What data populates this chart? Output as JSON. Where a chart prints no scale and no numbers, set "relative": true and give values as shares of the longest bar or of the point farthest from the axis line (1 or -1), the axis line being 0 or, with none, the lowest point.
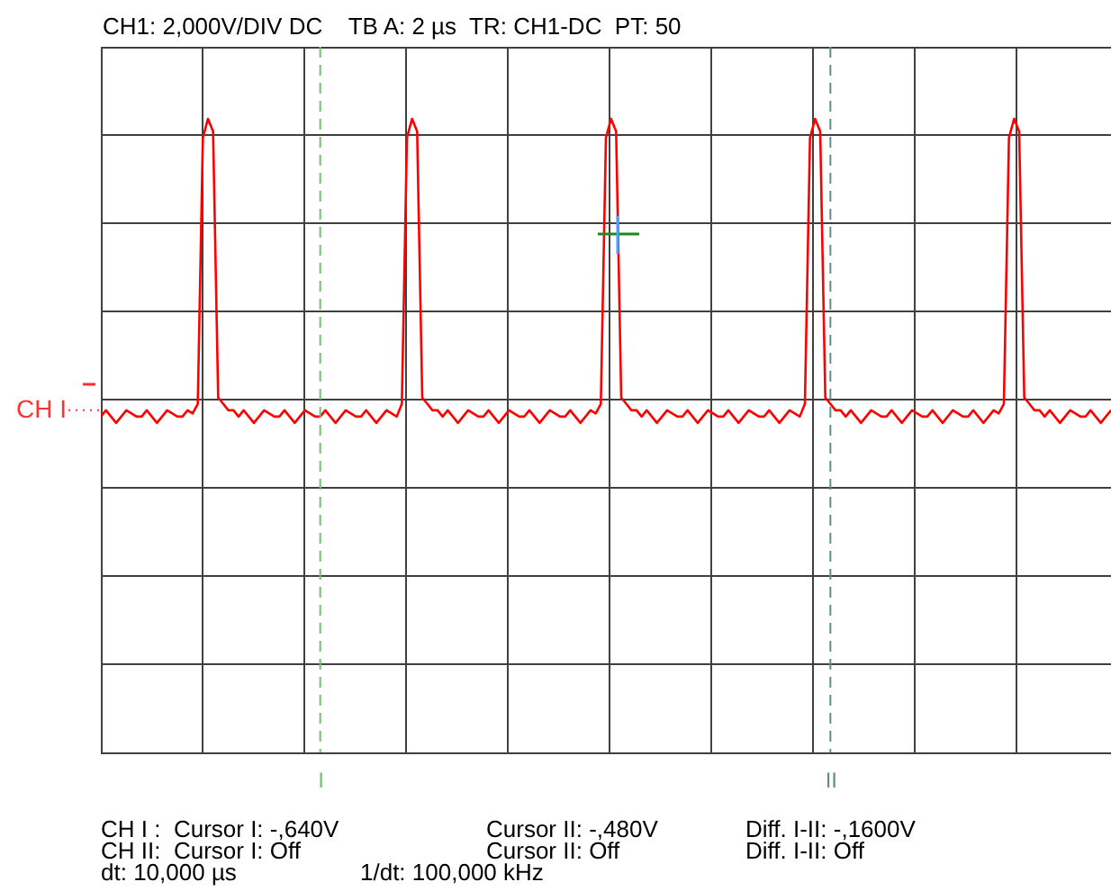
{
  "chart_data": {
    "type": "line",
    "title": "CH1: 2,000V/DIV DC    TB A: 2 µs  TR: CH1-DC  PT: 50",
    "relative": true,
    "grid": true,
    "line_style": "solid",
    "categories": [
      null,
      null,
      null,
      null,
      null,
      null,
      null,
      null,
      null,
      null,
      null,
      null,
      null,
      null,
      null,
      null,
      null,
      null,
      null,
      null,
      null,
      null,
      null,
      null,
      null,
      null,
      null,
      null,
      null,
      null,
      null,
      null,
      null,
      null,
      null,
      null,
      null,
      null,
      null,
      null,
      null,
      null,
      null,
      "I",
      null,
      null,
      null,
      null,
      null,
      null,
      null,
      null,
      null,
      null,
      null,
      null,
      null,
      null,
      null,
      null,
      null,
      null,
      null,
      null,
      null,
      null,
      null,
      null,
      null,
      null,
      null,
      null,
      null,
      null,
      null,
      null,
      null,
      null,
      null,
      null,
      null,
      null,
      null,
      null,
      null,
      null,
      null,
      null,
      null,
      null,
      null,
      null,
      null,
      null,
      null,
      null,
      null,
      null,
      null,
      null,
      null,
      null,
      null,
      null,
      null,
      null,
      null,
      null,
      null,
      null,
      null,
      null,
      null,
      null,
      null,
      null,
      null,
      null,
      null,
      null,
      null,
      null,
      null,
      null,
      null,
      null,
      null,
      null,
      null,
      null,
      null,
      null,
      null,
      null,
      null,
      null,
      null,
      null,
      null,
      null,
      null,
      null,
      null,
      "II",
      null,
      null,
      null,
      null,
      null,
      null,
      null,
      null,
      null,
      null,
      null,
      null,
      null,
      null,
      null,
      null,
      null,
      null,
      null,
      null,
      null,
      null,
      null,
      null,
      null,
      null,
      null,
      null,
      null,
      null,
      null,
      null,
      null,
      null,
      null,
      null,
      null,
      null,
      null,
      null,
      null,
      null,
      null,
      null,
      null,
      null,
      null,
      null,
      null,
      null,
      null,
      null,
      null,
      null,
      null
    ],
    "series": [
      {
        "color": "#ff0000",
        "values": [
          0.53,
          0.54,
          0.53,
          0.52,
          0.53,
          0.54,
          0.535,
          0.53,
          0.53,
          0.54,
          0.53,
          0.52,
          0.53,
          0.54,
          0.535,
          0.53,
          0.53,
          0.54,
          0.535,
          0.55,
          0.97,
          1,
          0.98,
          0.56,
          0.55,
          0.54,
          0.54,
          0.53,
          0.54,
          0.53,
          0.52,
          0.53,
          0.54,
          0.535,
          0.53,
          0.53,
          0.54,
          0.53,
          0.52,
          0.53,
          0.54,
          0.535,
          0.53,
          0.53,
          0.54,
          0.53,
          0.52,
          0.53,
          0.54,
          0.535,
          0.53,
          0.53,
          0.54,
          0.53,
          0.52,
          0.53,
          0.54,
          0.535,
          0.53,
          0.55,
          0.97,
          1,
          0.98,
          0.56,
          0.55,
          0.54,
          0.54,
          0.53,
          0.54,
          0.53,
          0.52,
          0.53,
          0.54,
          0.535,
          0.53,
          0.53,
          0.54,
          0.53,
          0.52,
          0.53,
          0.54,
          0.535,
          0.53,
          0.53,
          0.54,
          0.53,
          0.52,
          0.53,
          0.54,
          0.535,
          0.53,
          0.53,
          0.54,
          0.53,
          0.52,
          0.53,
          0.54,
          0.535,
          0.55,
          0.97,
          1,
          0.98,
          0.56,
          0.55,
          0.54,
          0.54,
          0.53,
          0.54,
          0.53,
          0.52,
          0.53,
          0.54,
          0.535,
          0.53,
          0.53,
          0.54,
          0.53,
          0.52,
          0.53,
          0.54,
          0.535,
          0.53,
          0.53,
          0.54,
          0.53,
          0.52,
          0.53,
          0.54,
          0.535,
          0.53,
          0.53,
          0.54,
          0.53,
          0.52,
          0.53,
          0.54,
          0.535,
          0.53,
          0.55,
          0.97,
          1,
          0.98,
          0.56,
          0.55,
          0.54,
          0.54,
          0.53,
          0.54,
          0.53,
          0.52,
          0.53,
          0.54,
          0.535,
          0.53,
          0.53,
          0.54,
          0.53,
          0.52,
          0.53,
          0.54,
          0.535,
          0.53,
          0.53,
          0.54,
          0.53,
          0.52,
          0.53,
          0.54,
          0.535,
          0.53,
          0.53,
          0.54,
          0.53,
          0.52,
          0.53,
          0.54,
          0.535,
          0.55,
          0.97,
          1,
          0.98,
          0.56,
          0.55,
          0.54,
          0.54,
          0.53,
          0.54,
          0.53,
          0.52,
          0.53,
          0.54,
          0.535,
          0.53,
          0.53,
          0.54,
          0.53,
          0.52,
          0.53,
          0.54
        ]
      }
    ],
    "ref_lines": [
      {
        "axis": "x",
        "value": "I",
        "color": "#6cc46c",
        "line_style": "dashed"
      },
      {
        "axis": "x",
        "value": "II",
        "color": "#5f8f8f",
        "line_style": "dashed"
      },
      {
        "axis": "y",
        "value": 0.54,
        "label": "CH I",
        "color": "#ff3030",
        "line_style": "dotted"
      }
    ],
    "annotations": [
      "CH I :  Cursor I: -,640V",
      "Cursor II: -,480V",
      "Diff. I-II: -,1600V",
      "CH II:  Cursor I: Off",
      "Cursor II: Off",
      "Diff. I-II: Off",
      "dt: 10,000 µs",
      "1/dt: 100,000 kHz"
    ]
  }
}
